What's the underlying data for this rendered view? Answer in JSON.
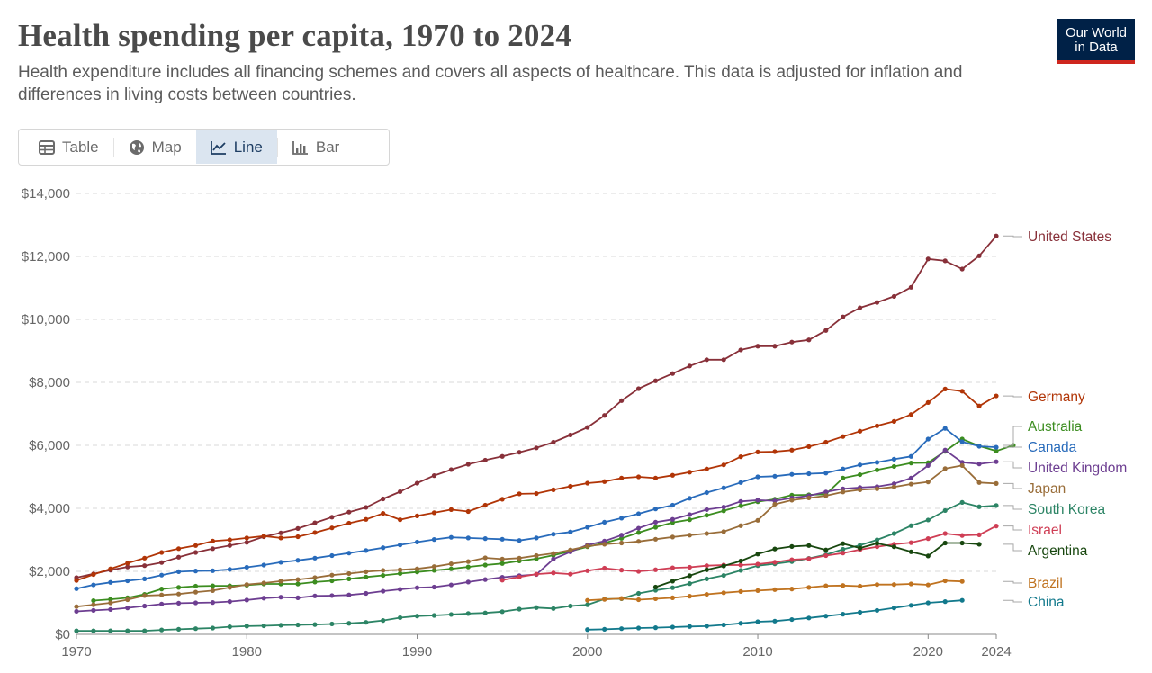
{
  "title": "Health spending per capita, 1970 to 2024",
  "subtitle": "Health expenditure includes all financing schemes and covers all aspects of healthcare. This data is adjusted for inflation and differences in living costs between countries.",
  "logo": {
    "line1": "Our World",
    "line2": "in Data"
  },
  "tabs": [
    {
      "label": "Table",
      "icon": "table-icon"
    },
    {
      "label": "Map",
      "icon": "globe-icon"
    },
    {
      "label": "Line",
      "icon": "line-chart-icon",
      "active": true
    },
    {
      "label": "Bar",
      "icon": "bar-chart-icon"
    }
  ],
  "chart_data": {
    "type": "line",
    "title": "Health spending per capita, 1970 to 2024",
    "xlim": [
      1970,
      2024
    ],
    "ylim": [
      0,
      14000
    ],
    "x_ticks": [
      1970,
      1980,
      1990,
      2000,
      2010,
      2020,
      2024
    ],
    "y_ticks": [
      0,
      2000,
      4000,
      6000,
      8000,
      10000,
      12000,
      14000
    ],
    "y_tick_labels": [
      "$0",
      "$2,000",
      "$4,000",
      "$6,000",
      "$8,000",
      "$10,000",
      "$12,000",
      "$14,000"
    ],
    "grid": true,
    "legend": "right",
    "series": [
      {
        "name": "United States",
        "color": "#883039",
        "start": 1970,
        "values": [
          1800,
          1920,
          2040,
          2140,
          2180,
          2280,
          2450,
          2600,
          2720,
          2820,
          2920,
          3100,
          3220,
          3360,
          3540,
          3720,
          3880,
          4030,
          4300,
          4530,
          4800,
          5040,
          5230,
          5400,
          5530,
          5650,
          5780,
          5920,
          6100,
          6330,
          6570,
          6950,
          7420,
          7800,
          8050,
          8280,
          8520,
          8720,
          8720,
          9030,
          9150,
          9150,
          9280,
          9350,
          9650,
          10080,
          10370,
          10540,
          10730,
          11020,
          11920,
          11860,
          11600,
          12020,
          12650
        ]
      },
      {
        "name": "Germany",
        "color": "#b13507",
        "start": 1970,
        "values": [
          1710,
          1900,
          2080,
          2260,
          2420,
          2600,
          2720,
          2820,
          2960,
          3000,
          3060,
          3120,
          3060,
          3100,
          3230,
          3380,
          3530,
          3650,
          3840,
          3640,
          3760,
          3860,
          3960,
          3900,
          4100,
          4290,
          4460,
          4470,
          4590,
          4700,
          4800,
          4850,
          4960,
          5000,
          4960,
          5050,
          5150,
          5250,
          5380,
          5640,
          5790,
          5800,
          5850,
          5960,
          6100,
          6280,
          6450,
          6620,
          6760,
          6980,
          7360,
          7790,
          7720,
          7250,
          7570
        ]
      },
      {
        "name": "Australia",
        "color": "#38aaba",
        "start": 1971,
        "values": [
          1070,
          1110,
          1160,
          1270,
          1440,
          1490,
          1530,
          1540,
          1540,
          1560,
          1600,
          1600,
          1600,
          1660,
          1700,
          1760,
          1820,
          1870,
          1930,
          1980,
          2030,
          2080,
          2140,
          2200,
          2250,
          2330,
          2400,
          2510,
          2640,
          2780,
          2900,
          3050,
          3230,
          3400,
          3550,
          3640,
          3780,
          3920,
          4080,
          4210,
          4290,
          4420,
          4430,
          4450,
          4960,
          5070,
          5220,
          5330,
          5440,
          5450,
          5810,
          6200,
          5980,
          5820,
          6000
        ]
      },
      {
        "name": "Canada",
        "color": "#286bbb",
        "start": 1970,
        "values": [
          1450,
          1570,
          1650,
          1700,
          1760,
          1880,
          1990,
          2010,
          2020,
          2060,
          2130,
          2200,
          2290,
          2350,
          2420,
          2500,
          2580,
          2660,
          2750,
          2840,
          2930,
          3010,
          3080,
          3060,
          3040,
          3020,
          2980,
          3060,
          3180,
          3250,
          3400,
          3560,
          3690,
          3830,
          3980,
          4100,
          4320,
          4500,
          4650,
          4820,
          5000,
          5020,
          5080,
          5100,
          5120,
          5250,
          5380,
          5460,
          5560,
          5650,
          6200,
          6540,
          6110,
          5970,
          5940
        ]
      },
      {
        "name": "United Kingdom",
        "color": "#6d3e91",
        "start": 1970,
        "values": [
          730,
          760,
          790,
          840,
          900,
          960,
          990,
          1000,
          1010,
          1040,
          1090,
          1150,
          1180,
          1160,
          1220,
          1230,
          1250,
          1300,
          1370,
          1430,
          1480,
          1500,
          1570,
          1660,
          1740,
          1810,
          1860,
          1900,
          2390,
          2620,
          2840,
          2960,
          3150,
          3370,
          3560,
          3650,
          3800,
          3960,
          4040,
          4220,
          4260,
          4240,
          4330,
          4400,
          4520,
          4620,
          4660,
          4690,
          4780,
          4960,
          5360,
          5850,
          5460,
          5410,
          5480
        ]
      },
      {
        "name": "Japan",
        "color": "#996d39",
        "start": 1970,
        "values": [
          880,
          940,
          1000,
          1100,
          1230,
          1250,
          1280,
          1340,
          1390,
          1490,
          1580,
          1630,
          1690,
          1740,
          1800,
          1880,
          1930,
          1990,
          2030,
          2050,
          2080,
          2150,
          2240,
          2310,
          2430,
          2390,
          2420,
          2500,
          2570,
          2680,
          2800,
          2860,
          2900,
          2950,
          3020,
          3090,
          3150,
          3200,
          3260,
          3450,
          3620,
          4130,
          4260,
          4330,
          4400,
          4520,
          4590,
          4620,
          4680,
          4770,
          4840,
          5260,
          5360,
          4820,
          4790
        ]
      },
      {
        "name": "South Korea",
        "color": "#2c8465",
        "start": 1970,
        "values": [
          110,
          110,
          110,
          110,
          110,
          140,
          160,
          180,
          200,
          240,
          260,
          270,
          290,
          300,
          310,
          330,
          350,
          380,
          440,
          530,
          580,
          600,
          630,
          660,
          680,
          720,
          800,
          850,
          820,
          900,
          940,
          1120,
          1130,
          1300,
          1400,
          1480,
          1610,
          1760,
          1870,
          2030,
          2180,
          2240,
          2310,
          2410,
          2530,
          2700,
          2830,
          3000,
          3200,
          3450,
          3630,
          3930,
          4190,
          4050,
          4090
        ]
      },
      {
        "name": "Israel",
        "color": "#cf0a66",
        "start": 1995,
        "values": [
          1720,
          1820,
          1910,
          1950,
          1910,
          2020,
          2100,
          2040,
          2000,
          2050,
          2110,
          2130,
          2180,
          2200,
          2200,
          2230,
          2290,
          2370,
          2400,
          2500,
          2580,
          2690,
          2780,
          2860,
          2910,
          3040,
          3200,
          3140,
          3160,
          3440
        ]
      },
      {
        "name": "Argentina",
        "color": "#00295b",
        "start": 2004,
        "values": [
          1500,
          1690,
          1860,
          2050,
          2170,
          2330,
          2550,
          2710,
          2790,
          2820,
          2680,
          2880,
          2740,
          2890,
          2780,
          2620,
          2490,
          2900,
          2900,
          2860
        ]
      },
      {
        "name": "Brazil",
        "color": "#c15065",
        "start": 2000,
        "values": [
          1080,
          1110,
          1140,
          1100,
          1130,
          1160,
          1210,
          1270,
          1320,
          1360,
          1390,
          1420,
          1440,
          1490,
          1540,
          1550,
          1530,
          1580,
          1580,
          1600,
          1570,
          1700,
          1680
        ]
      },
      {
        "name": "China",
        "color": "#18470f",
        "start": 2000,
        "values": [
          150,
          160,
          180,
          200,
          210,
          230,
          250,
          260,
          300,
          350,
          400,
          420,
          470,
          520,
          580,
          640,
          700,
          760,
          840,
          920,
          1000,
          1040,
          1080
        ]
      }
    ]
  }
}
